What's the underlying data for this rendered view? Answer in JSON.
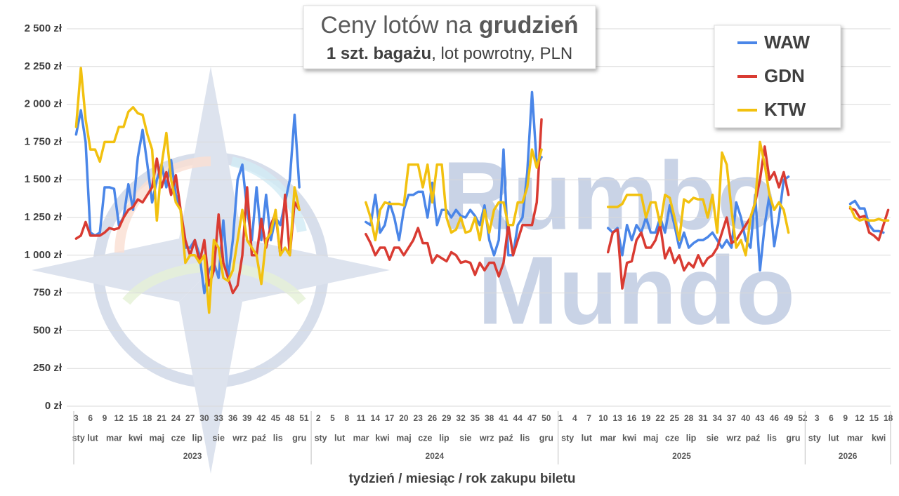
{
  "chart_data": {
    "type": "line",
    "title_parts": [
      "Ceny lotów na",
      "grudzień"
    ],
    "subtitle_parts": [
      "1 szt. bagażu",
      ", lot powrotny, PLN"
    ],
    "x_label": "tydzień / miesiąc / rok zakupu biletu",
    "watermark": [
      "Rumbo",
      "Mundo"
    ],
    "grid": true,
    "legend": "top-right",
    "ylim": [
      0,
      2500
    ],
    "yticks": [
      {
        "value": 0,
        "label": "0 zł"
      },
      {
        "value": 250,
        "label": "250 zł"
      },
      {
        "value": 500,
        "label": "500 zł"
      },
      {
        "value": 750,
        "label": "750 zł"
      },
      {
        "value": 1000,
        "label": "1 000 zł"
      },
      {
        "value": 1250,
        "label": "1 250 zł"
      },
      {
        "value": 1500,
        "label": "1 500 zł"
      },
      {
        "value": 1750,
        "label": "1 750 zł"
      },
      {
        "value": 2000,
        "label": "2 000 zł"
      },
      {
        "value": 2250,
        "label": "2 250 zł"
      },
      {
        "value": 2500,
        "label": "2 500 zł"
      }
    ],
    "categories": [
      3,
      null,
      null,
      6,
      null,
      null,
      9,
      null,
      null,
      12,
      null,
      null,
      15,
      null,
      null,
      18,
      null,
      null,
      21,
      null,
      null,
      24,
      null,
      null,
      27,
      null,
      null,
      30,
      null,
      null,
      33,
      null,
      null,
      36,
      null,
      null,
      39,
      null,
      null,
      42,
      null,
      null,
      45,
      null,
      null,
      48,
      null,
      null,
      51,
      null,
      null,
      2,
      null,
      null,
      5,
      null,
      null,
      8,
      null,
      null,
      11,
      null,
      null,
      14,
      null,
      null,
      17,
      null,
      null,
      20,
      null,
      null,
      23,
      null,
      null,
      26,
      null,
      null,
      29,
      null,
      null,
      32,
      null,
      null,
      35,
      null,
      null,
      38,
      null,
      null,
      41,
      null,
      null,
      44,
      null,
      null,
      47,
      null,
      null,
      50,
      null,
      null,
      1,
      null,
      null,
      4,
      null,
      null,
      7,
      null,
      null,
      10,
      null,
      null,
      13,
      null,
      null,
      16,
      null,
      null,
      19,
      null,
      null,
      22,
      null,
      null,
      25,
      null,
      null,
      28,
      null,
      null,
      31,
      null,
      null,
      34,
      null,
      null,
      37,
      null,
      null,
      40,
      null,
      null,
      43,
      null,
      null,
      46,
      null,
      null,
      49,
      null,
      null,
      52,
      null,
      null,
      3,
      null,
      null,
      6,
      null,
      null,
      9,
      null,
      null,
      12,
      null,
      null,
      15,
      null,
      null,
      18
    ],
    "months": [
      "sty",
      null,
      "lut",
      null,
      null,
      null,
      "mar",
      null,
      null,
      null,
      null,
      "kwi",
      null,
      null,
      null,
      "maj",
      null,
      null,
      null,
      null,
      "cze",
      null,
      null,
      null,
      "lip",
      null,
      null,
      null,
      "sie",
      null,
      null,
      null,
      null,
      "wrz",
      null,
      null,
      null,
      "paź",
      null,
      null,
      null,
      "lis",
      null,
      null,
      null,
      "gru",
      null,
      null,
      null,
      null,
      "sty",
      null,
      null,
      null,
      "lut",
      null,
      null,
      null,
      "mar",
      null,
      null,
      null,
      null,
      "kwi",
      null,
      null,
      null,
      "maj",
      null,
      null,
      null,
      null,
      "cze",
      null,
      null,
      null,
      "lip",
      null,
      null,
      null,
      "sie",
      null,
      null,
      null,
      null,
      "wrz",
      null,
      null,
      null,
      "paź",
      null,
      null,
      null,
      "lis",
      null,
      null,
      null,
      "gru",
      null,
      null,
      null,
      null,
      "sty",
      null,
      null,
      null,
      "lut",
      null,
      null,
      null,
      "mar",
      null,
      null,
      null,
      null,
      "kwi",
      null,
      null,
      null,
      "maj",
      null,
      null,
      null,
      null,
      "cze",
      null,
      null,
      null,
      "lip",
      null,
      null,
      null,
      "sie",
      null,
      null,
      null,
      null,
      "wrz",
      null,
      null,
      null,
      "paź",
      null,
      null,
      null,
      "lis",
      null,
      null,
      null,
      "gru",
      null,
      null,
      null,
      null,
      "sty",
      null,
      null,
      null,
      "lut",
      null,
      null,
      null,
      "mar",
      null,
      null,
      null,
      null,
      "kwi",
      null,
      null,
      null,
      null
    ],
    "years": [
      2023,
      null,
      null,
      null,
      null,
      null,
      null,
      null,
      null,
      null,
      null,
      null,
      null,
      null,
      null,
      null,
      null,
      null,
      null,
      null,
      null,
      null,
      null,
      null,
      null,
      null,
      null,
      null,
      null,
      null,
      null,
      null,
      null,
      null,
      null,
      null,
      null,
      null,
      null,
      null,
      null,
      null,
      null,
      null,
      null,
      null,
      null,
      null,
      null,
      null,
      2024,
      null,
      null,
      null,
      null,
      null,
      null,
      null,
      null,
      null,
      null,
      null,
      null,
      null,
      null,
      null,
      null,
      null,
      null,
      null,
      null,
      null,
      null,
      null,
      null,
      null,
      null,
      null,
      null,
      null,
      null,
      null,
      null,
      null,
      null,
      null,
      null,
      null,
      null,
      null,
      null,
      null,
      null,
      null,
      null,
      null,
      null,
      null,
      null,
      null,
      null,
      null,
      2025,
      null,
      null,
      null,
      null,
      null,
      null,
      null,
      null,
      null,
      null,
      null,
      null,
      null,
      null,
      null,
      null,
      null,
      null,
      null,
      null,
      null,
      null,
      null,
      null,
      null,
      null,
      null,
      null,
      null,
      null,
      null,
      null,
      null,
      null,
      null,
      null,
      null,
      null,
      null,
      null,
      null,
      null,
      null,
      null,
      null,
      null,
      null,
      null,
      null,
      null,
      null,
      2026,
      null,
      null,
      null,
      null,
      null,
      null,
      null,
      null,
      null,
      null,
      null,
      null,
      null,
      null,
      null,
      null,
      null
    ],
    "series": [
      {
        "name": "WAW",
        "color": "#4a86e8",
        "values": [
          1800,
          1960,
          1750,
          1150,
          1130,
          1150,
          1450,
          1450,
          1440,
          1200,
          1250,
          1470,
          1300,
          1650,
          1830,
          1600,
          1350,
          1500,
          1600,
          1450,
          1630,
          1400,
          1300,
          1050,
          1050,
          1100,
          1000,
          750,
          900,
          950,
          850,
          1230,
          850,
          1100,
          1500,
          1600,
          1300,
          1100,
          1450,
          1100,
          1400,
          1100,
          1250,
          1200,
          1350,
          1500,
          1930,
          1450,
          null,
          null,
          null,
          null,
          null,
          null,
          null,
          null,
          null,
          null,
          null,
          null,
          null,
          1220,
          1200,
          1400,
          1150,
          1200,
          1350,
          1250,
          1100,
          1300,
          1400,
          1400,
          1420,
          1420,
          1250,
          1480,
          1200,
          1300,
          1300,
          1250,
          1300,
          1260,
          1250,
          1300,
          1260,
          1200,
          1330,
          1100,
          1000,
          1100,
          1700,
          1000,
          1000,
          1200,
          1250,
          1550,
          2080,
          1600,
          1650,
          null,
          null,
          null,
          null,
          null,
          null,
          null,
          null,
          null,
          null,
          null,
          null,
          null,
          1180,
          1150,
          1180,
          1000,
          1200,
          1100,
          1200,
          1150,
          1250,
          1150,
          1150,
          1250,
          1150,
          1330,
          1200,
          1050,
          1150,
          1050,
          1080,
          1100,
          1100,
          1120,
          1150,
          1100,
          1050,
          1100,
          1050,
          1350,
          1250,
          1100,
          1050,
          1400,
          900,
          1200,
          1400,
          1060,
          1250,
          1500,
          1520,
          null,
          null,
          null,
          null,
          null,
          null,
          null,
          null,
          null,
          null,
          null,
          null,
          1340,
          1360,
          1310,
          1310,
          1200,
          1160,
          1160,
          1150,
          null
        ]
      },
      {
        "name": "GDN",
        "color": "#d93b32",
        "values": [
          1110,
          1130,
          1220,
          1130,
          1130,
          1130,
          1150,
          1180,
          1170,
          1180,
          1250,
          1300,
          1320,
          1370,
          1350,
          1400,
          1450,
          1640,
          1450,
          1550,
          1400,
          1530,
          1300,
          1100,
          1000,
          1100,
          950,
          1100,
          800,
          900,
          1270,
          950,
          850,
          750,
          800,
          1000,
          1450,
          1000,
          1000,
          1240,
          1050,
          1200,
          1280,
          1000,
          1400,
          1000,
          1350,
          1300,
          null,
          null,
          null,
          null,
          null,
          null,
          null,
          null,
          null,
          null,
          null,
          null,
          null,
          1140,
          1080,
          1000,
          1050,
          1050,
          970,
          1050,
          1050,
          1000,
          1050,
          1100,
          1180,
          1080,
          1080,
          950,
          1000,
          980,
          960,
          1020,
          1000,
          950,
          960,
          950,
          870,
          950,
          900,
          950,
          950,
          860,
          950,
          1200,
          1000,
          1100,
          1200,
          1200,
          1200,
          1350,
          1900,
          null,
          null,
          null,
          null,
          null,
          null,
          null,
          null,
          null,
          null,
          null,
          null,
          null,
          1020,
          1150,
          1170,
          780,
          950,
          960,
          1100,
          1150,
          1050,
          1050,
          1100,
          1200,
          980,
          1050,
          950,
          1000,
          900,
          950,
          920,
          1000,
          930,
          980,
          1000,
          1050,
          1150,
          1250,
          1080,
          1100,
          1150,
          1200,
          1250,
          1350,
          1500,
          1720,
          1500,
          1550,
          1450,
          1550,
          1400,
          null,
          null,
          null,
          null,
          null,
          null,
          null,
          null,
          null,
          null,
          null,
          null,
          1310,
          1300,
          1250,
          1260,
          1150,
          1130,
          1100,
          1200,
          1300
        ]
      },
      {
        "name": "KTW",
        "color": "#f2c10f",
        "values": [
          1850,
          2240,
          1900,
          1700,
          1700,
          1620,
          1750,
          1750,
          1750,
          1850,
          1850,
          1950,
          1980,
          1940,
          1930,
          1800,
          1700,
          1230,
          1600,
          1810,
          1500,
          1350,
          1300,
          950,
          1000,
          1000,
          950,
          1000,
          620,
          1100,
          1050,
          850,
          830,
          900,
          1100,
          1300,
          1100,
          1050,
          1000,
          810,
          1100,
          1150,
          1300,
          1000,
          1050,
          1000,
          1450,
          1300,
          null,
          null,
          null,
          null,
          null,
          null,
          null,
          null,
          null,
          null,
          null,
          null,
          null,
          1350,
          1250,
          1100,
          1300,
          1350,
          1340,
          1340,
          1340,
          1330,
          1600,
          1600,
          1600,
          1450,
          1600,
          1350,
          1600,
          1600,
          1250,
          1150,
          1170,
          1250,
          1150,
          1160,
          1250,
          1100,
          1300,
          1150,
          1300,
          1350,
          1350,
          1200,
          1200,
          1350,
          1350,
          1450,
          1700,
          1580,
          1700,
          null,
          null,
          null,
          null,
          null,
          null,
          null,
          null,
          null,
          null,
          null,
          null,
          null,
          1320,
          1320,
          1320,
          1340,
          1400,
          1400,
          1400,
          1400,
          1250,
          1350,
          1350,
          1200,
          1400,
          1380,
          1250,
          1100,
          1370,
          1350,
          1380,
          1370,
          1370,
          1250,
          1400,
          1150,
          1680,
          1600,
          1300,
          1050,
          1100,
          1000,
          1250,
          1350,
          1750,
          1600,
          1400,
          1300,
          1350,
          1300,
          1150,
          null,
          null,
          null,
          null,
          null,
          null,
          null,
          null,
          null,
          null,
          null,
          null,
          1320,
          1250,
          1230,
          1240,
          1230,
          1230,
          1240,
          1230,
          1230
        ]
      }
    ]
  }
}
